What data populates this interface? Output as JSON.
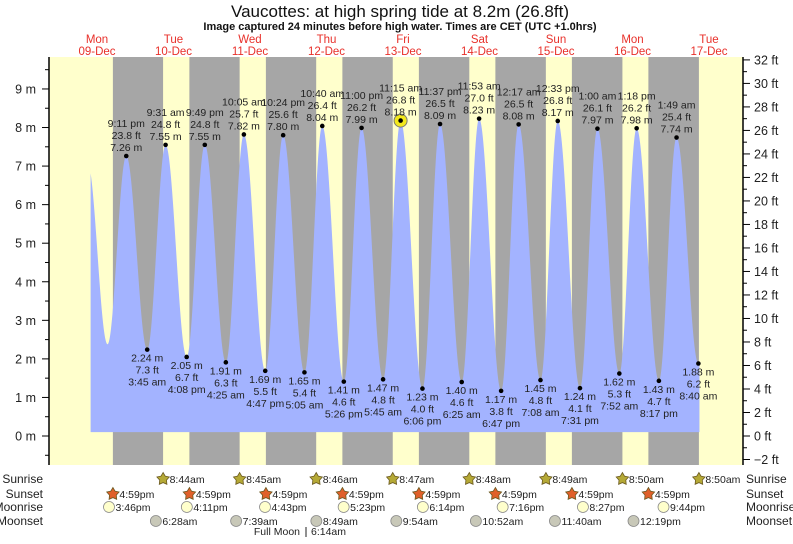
{
  "chart_data": {
    "type": "area",
    "title": "Vaucottes: at high  spring tide at 8.2m (26.8ft)",
    "subtitle": "Image captured 24 minutes before high water. Times are CET (UTC +1.0hrs)",
    "colors": {
      "day": "#ffffcc",
      "night": "#a6a6a6",
      "water": "#a3b3ff",
      "day_label": "#e8302a",
      "sunrise": "#b5a936",
      "sunset": "#e0602a",
      "moonrise": "#ffffcc",
      "moonset": "#c8c8b8",
      "highlight": "#f2e81c"
    },
    "days": [
      {
        "dow": "Mon",
        "date": "09-Dec"
      },
      {
        "dow": "Tue",
        "date": "10-Dec"
      },
      {
        "dow": "Wed",
        "date": "11-Dec"
      },
      {
        "dow": "Thu",
        "date": "12-Dec"
      },
      {
        "dow": "Fri",
        "date": "13-Dec"
      },
      {
        "dow": "Sat",
        "date": "14-Dec"
      },
      {
        "dow": "Sun",
        "date": "15-Dec"
      },
      {
        "dow": "Mon",
        "date": "16-Dec"
      },
      {
        "dow": "Tue",
        "date": "17-Dec"
      }
    ],
    "y_left": {
      "unit": "m",
      "range": [
        -0.61,
        9.75
      ],
      "ticks": [
        "0 m",
        "1 m",
        "2 m",
        "3 m",
        "4 m",
        "5 m",
        "6 m",
        "7 m",
        "8 m",
        "9 m"
      ]
    },
    "y_right": {
      "unit": "ft",
      "range": [
        -2,
        32
      ],
      "ticks": [
        "−2 ft",
        "0 ft",
        "2 ft",
        "4 ft",
        "6 ft",
        "8 ft",
        "10 ft",
        "12 ft",
        "14 ft",
        "16 ft",
        "18 ft",
        "20 ft",
        "22 ft",
        "24 ft",
        "26 ft",
        "28 ft",
        "30 ft",
        "32 ft"
      ]
    },
    "unlabeled_extremes": [
      {
        "t": 9.0,
        "m": 7.1
      },
      {
        "t": 15.3,
        "m": 2.38
      }
    ],
    "extremes": [
      {
        "type": "high",
        "t": 21.18,
        "time": "9:11 pm",
        "ft": "23.8 ft",
        "m_label": "7.26 m",
        "m": 7.26
      },
      {
        "type": "low",
        "t": 27.75,
        "time": "3:45 am",
        "ft": "7.3 ft",
        "m_label": "2.24 m",
        "m": 2.24
      },
      {
        "type": "high",
        "t": 33.52,
        "time": "9:31 am",
        "ft": "24.8 ft",
        "m_label": "7.55 m",
        "m": 7.55
      },
      {
        "type": "low",
        "t": 40.13,
        "time": "4:08 pm",
        "ft": "6.7 ft",
        "m_label": "2.05 m",
        "m": 2.05
      },
      {
        "type": "high",
        "t": 45.82,
        "time": "9:49 pm",
        "ft": "24.8 ft",
        "m_label": "7.55 m",
        "m": 7.55
      },
      {
        "type": "low",
        "t": 52.42,
        "time": "4:25 am",
        "ft": "6.3 ft",
        "m_label": "1.91 m",
        "m": 1.91
      },
      {
        "type": "high",
        "t": 58.08,
        "time": "10:05 am",
        "ft": "25.7 ft",
        "m_label": "7.82 m",
        "m": 7.82
      },
      {
        "type": "low",
        "t": 64.78,
        "time": "4:47 pm",
        "ft": "5.5 ft",
        "m_label": "1.69 m",
        "m": 1.69
      },
      {
        "type": "high",
        "t": 70.4,
        "time": "10:24 pm",
        "ft": "25.6 ft",
        "m_label": "7.80 m",
        "m": 7.8
      },
      {
        "type": "low",
        "t": 77.08,
        "time": "5:05 am",
        "ft": "5.4 ft",
        "m_label": "1.65 m",
        "m": 1.65
      },
      {
        "type": "high",
        "t": 82.67,
        "time": "10:40 am",
        "ft": "26.4 ft",
        "m_label": "8.04 m",
        "m": 8.04
      },
      {
        "type": "low",
        "t": 89.43,
        "time": "5:26 pm",
        "ft": "4.6 ft",
        "m_label": "1.41 m",
        "m": 1.41
      },
      {
        "type": "high",
        "t": 95.0,
        "time": "11:00 pm",
        "ft": "26.2 ft",
        "m_label": "7.99 m",
        "m": 7.99
      },
      {
        "type": "low",
        "t": 101.75,
        "time": "5:45 am",
        "ft": "4.8 ft",
        "m_label": "1.47 m",
        "m": 1.47
      },
      {
        "type": "high",
        "t": 107.25,
        "time": "11:15 am",
        "ft": "26.8 ft",
        "m_label": "8.18 m",
        "m": 8.18,
        "current": true
      },
      {
        "type": "low",
        "t": 114.1,
        "time": "6:06 pm",
        "ft": "4.0 ft",
        "m_label": "1.23 m",
        "m": 1.23
      },
      {
        "type": "high",
        "t": 119.62,
        "time": "11:37 pm",
        "ft": "26.5 ft",
        "m_label": "8.09 m",
        "m": 8.09
      },
      {
        "type": "low",
        "t": 126.42,
        "time": "6:25 am",
        "ft": "4.6 ft",
        "m_label": "1.40 m",
        "m": 1.4
      },
      {
        "type": "high",
        "t": 131.88,
        "time": "11:53 am",
        "ft": "27.0 ft",
        "m_label": "8.23 m",
        "m": 8.23
      },
      {
        "type": "low",
        "t": 138.78,
        "time": "6:47 pm",
        "ft": "3.8 ft",
        "m_label": "1.17 m",
        "m": 1.17
      },
      {
        "type": "high",
        "t": 144.28,
        "time": "12:17 am",
        "ft": "26.5 ft",
        "m_label": "8.08 m",
        "m": 8.08
      },
      {
        "type": "low",
        "t": 151.13,
        "time": "7:08 am",
        "ft": "4.8 ft",
        "m_label": "1.45 m",
        "m": 1.45
      },
      {
        "type": "high",
        "t": 156.55,
        "time": "12:33 pm",
        "ft": "26.8 ft",
        "m_label": "8.17 m",
        "m": 8.17
      },
      {
        "type": "low",
        "t": 163.52,
        "time": "7:31 pm",
        "ft": "4.1 ft",
        "m_label": "1.24 m",
        "m": 1.24
      },
      {
        "type": "high",
        "t": 169.0,
        "time": "1:00 am",
        "ft": "26.1 ft",
        "m_label": "7.97 m",
        "m": 7.97
      },
      {
        "type": "low",
        "t": 175.87,
        "time": "7:52 am",
        "ft": "5.3 ft",
        "m_label": "1.62 m",
        "m": 1.62
      },
      {
        "type": "high",
        "t": 181.3,
        "time": "1:18 pm",
        "ft": "26.2 ft",
        "m_label": "7.98 m",
        "m": 7.98
      },
      {
        "type": "low",
        "t": 188.28,
        "time": "8:17 pm",
        "ft": "4.7 ft",
        "m_label": "1.43 m",
        "m": 1.43
      },
      {
        "type": "high",
        "t": 193.82,
        "time": "1:49 am",
        "ft": "25.4 ft",
        "m_label": "7.74 m",
        "m": 7.74
      },
      {
        "type": "low",
        "t": 200.67,
        "time": "8:40 am",
        "ft": "6.2 ft",
        "m_label": "1.88 m",
        "m": 1.88
      }
    ],
    "rows": {
      "sunrise": "Sunrise",
      "sunset": "Sunset",
      "moonrise": "Moonrise",
      "moonset": "Moonset"
    },
    "sunrise": [
      {
        "day": 1,
        "time": "8:44am"
      },
      {
        "day": 2,
        "time": "8:45am"
      },
      {
        "day": 3,
        "time": "8:46am"
      },
      {
        "day": 4,
        "time": "8:47am"
      },
      {
        "day": 5,
        "time": "8:48am"
      },
      {
        "day": 6,
        "time": "8:49am"
      },
      {
        "day": 7,
        "time": "8:50am"
      },
      {
        "day": 8,
        "time": "8:50am"
      }
    ],
    "sunset": [
      {
        "day": 0,
        "time": "4:59pm"
      },
      {
        "day": 1,
        "time": "4:59pm"
      },
      {
        "day": 2,
        "time": "4:59pm"
      },
      {
        "day": 3,
        "time": "4:59pm"
      },
      {
        "day": 4,
        "time": "4:59pm"
      },
      {
        "day": 5,
        "time": "4:59pm"
      },
      {
        "day": 6,
        "time": "4:59pm"
      },
      {
        "day": 7,
        "time": "4:59pm"
      }
    ],
    "moonrise": [
      {
        "day": 0,
        "time": "3:46pm"
      },
      {
        "day": 1,
        "time": "4:11pm"
      },
      {
        "day": 2,
        "time": "4:43pm"
      },
      {
        "day": 3,
        "time": "5:23pm"
      },
      {
        "day": 4,
        "time": "6:14pm"
      },
      {
        "day": 5,
        "time": "7:16pm"
      },
      {
        "day": 6,
        "time": "8:27pm"
      },
      {
        "day": 7,
        "time": "9:44pm"
      }
    ],
    "moonset": [
      {
        "day": 1,
        "time": "6:28am"
      },
      {
        "day": 2,
        "time": "7:39am"
      },
      {
        "day": 3,
        "time": "8:49am"
      },
      {
        "day": 4,
        "time": "9:54am"
      },
      {
        "day": 5,
        "time": "10:52am"
      },
      {
        "day": 6,
        "time": "11:40am"
      },
      {
        "day": 7,
        "time": "12:19pm"
      }
    ],
    "moon_phase": {
      "label": "Full Moon",
      "time": "6:14am"
    }
  }
}
